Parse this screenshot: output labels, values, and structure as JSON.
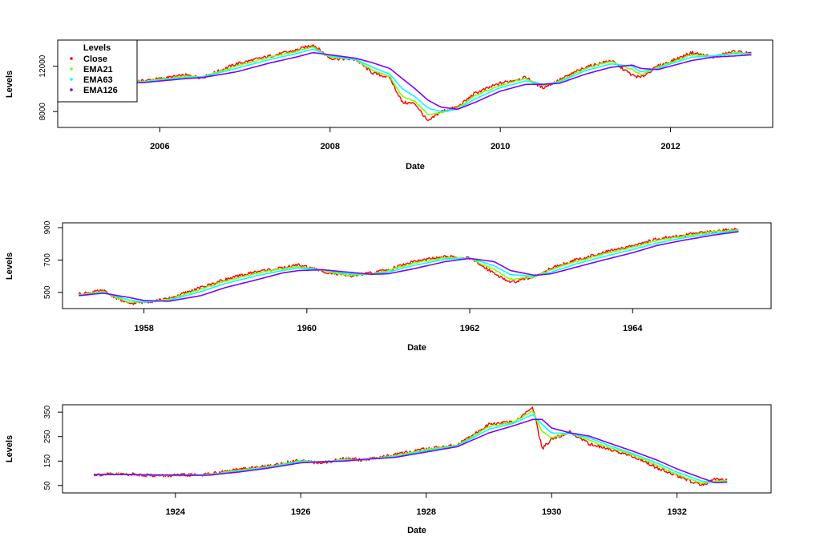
{
  "colors": {
    "Close": "#ff0000",
    "EMA21": "#80ff00",
    "EMA63": "#00ffff",
    "EMA126": "#8000ff"
  },
  "legend": {
    "title": "Levels",
    "entries": [
      "Close",
      "EMA21",
      "EMA63",
      "EMA126"
    ],
    "placement": "top-left of first panel"
  },
  "chart_data": [
    {
      "type": "line",
      "xlabel": "Date",
      "ylabel": "Levels",
      "xlim": [
        2004.8,
        2013.2
      ],
      "ylim": [
        6600,
        14300
      ],
      "xticks": [
        2006,
        2008,
        2010,
        2012
      ],
      "yticks": [
        8000,
        12000
      ],
      "x": [
        2004.9,
        2005.3,
        2005.8,
        2006.3,
        2006.5,
        2006.9,
        2007.3,
        2007.6,
        2007.8,
        2008.0,
        2008.3,
        2008.5,
        2008.7,
        2008.85,
        2009.0,
        2009.15,
        2009.3,
        2009.5,
        2009.7,
        2010.0,
        2010.3,
        2010.5,
        2010.7,
        2011.0,
        2011.3,
        2011.55,
        2011.65,
        2011.85,
        2012.0,
        2012.25,
        2012.5,
        2012.75,
        2012.95
      ],
      "series": [
        {
          "name": "Close",
          "values": [
            10650,
            10600,
            10700,
            11200,
            11000,
            12200,
            12900,
            13400,
            13900,
            12700,
            12600,
            11400,
            11000,
            8800,
            8700,
            7100,
            8000,
            8400,
            9600,
            10500,
            11000,
            10100,
            10800,
            11900,
            12500,
            11200,
            11000,
            12000,
            12400,
            13200,
            12800,
            13300,
            13100
          ]
        },
        {
          "name": "EMA21",
          "values": [
            10650,
            10600,
            10650,
            11100,
            11050,
            12000,
            12800,
            13300,
            13700,
            12800,
            12600,
            11600,
            11100,
            9300,
            8900,
            7700,
            7900,
            8300,
            9400,
            10300,
            10900,
            10300,
            10700,
            11800,
            12400,
            11700,
            11200,
            11900,
            12300,
            13000,
            12900,
            13200,
            13100
          ]
        },
        {
          "name": "EMA63",
          "values": [
            10650,
            10600,
            10600,
            11000,
            11050,
            11800,
            12600,
            13100,
            13500,
            12900,
            12600,
            11900,
            11300,
            10000,
            9300,
            8300,
            8000,
            8200,
            9100,
            10100,
            10700,
            10400,
            10600,
            11600,
            12200,
            12000,
            11500,
            11800,
            12200,
            12800,
            12900,
            13100,
            13100
          ]
        },
        {
          "name": "EMA126",
          "values": [
            10600,
            10600,
            10550,
            10900,
            11000,
            11500,
            12300,
            12800,
            13200,
            13000,
            12700,
            12300,
            11800,
            10900,
            10000,
            9000,
            8400,
            8200,
            8800,
            9800,
            10400,
            10400,
            10500,
            11300,
            11900,
            12100,
            11800,
            11700,
            12000,
            12500,
            12800,
            12900,
            13000
          ]
        }
      ]
    },
    {
      "type": "line",
      "xlabel": "Date",
      "ylabel": "Levels",
      "xlim": [
        1957.0,
        1965.7
      ],
      "ylim": [
        400,
        930
      ],
      "xticks": [
        1958,
        1960,
        1962,
        1964
      ],
      "yticks": [
        500,
        700,
        900
      ],
      "x": [
        1957.2,
        1957.5,
        1957.8,
        1958.0,
        1958.3,
        1958.7,
        1959.0,
        1959.4,
        1959.7,
        1959.9,
        1960.2,
        1960.5,
        1960.8,
        1961.0,
        1961.3,
        1961.7,
        1962.0,
        1962.3,
        1962.5,
        1962.8,
        1963.0,
        1963.3,
        1963.6,
        1964.0,
        1964.3,
        1964.6,
        1965.0,
        1965.3
      ],
      "series": [
        {
          "name": "Close",
          "values": [
            490,
            510,
            430,
            440,
            460,
            530,
            580,
            630,
            650,
            670,
            630,
            600,
            620,
            640,
            690,
            720,
            710,
            620,
            560,
            600,
            650,
            700,
            740,
            790,
            830,
            850,
            880,
            890
          ]
        },
        {
          "name": "EMA21",
          "values": [
            485,
            505,
            440,
            440,
            455,
            520,
            570,
            620,
            645,
            660,
            635,
            605,
            615,
            635,
            680,
            715,
            710,
            640,
            580,
            595,
            640,
            690,
            730,
            780,
            820,
            845,
            875,
            885
          ]
        },
        {
          "name": "EMA63",
          "values": [
            480,
            500,
            455,
            440,
            450,
            505,
            555,
            605,
            635,
            650,
            640,
            615,
            612,
            625,
            665,
            705,
            712,
            665,
            610,
            600,
            625,
            675,
            715,
            765,
            805,
            835,
            865,
            880
          ]
        },
        {
          "name": "EMA126",
          "values": [
            480,
            495,
            470,
            450,
            445,
            480,
            530,
            580,
            620,
            635,
            640,
            625,
            612,
            615,
            645,
            690,
            710,
            690,
            635,
            605,
            615,
            655,
            695,
            745,
            790,
            820,
            855,
            875
          ]
        }
      ]
    },
    {
      "type": "line",
      "xlabel": "Date",
      "ylabel": "Levels",
      "xlim": [
        1922.2,
        1933.5
      ],
      "ylim": [
        20,
        380
      ],
      "xticks": [
        1924,
        1926,
        1928,
        1930,
        1932
      ],
      "yticks": [
        50,
        150,
        250,
        350
      ],
      "x": [
        1922.7,
        1923.2,
        1923.8,
        1924.5,
        1925.0,
        1925.5,
        1926.0,
        1926.3,
        1926.7,
        1927.0,
        1927.5,
        1928.0,
        1928.5,
        1929.0,
        1929.4,
        1929.7,
        1929.85,
        1930.0,
        1930.3,
        1930.6,
        1930.9,
        1931.3,
        1931.7,
        1932.0,
        1932.4,
        1932.6,
        1932.8
      ],
      "series": [
        {
          "name": "Close",
          "values": [
            95,
            97,
            90,
            95,
            115,
            130,
            155,
            140,
            160,
            155,
            175,
            200,
            215,
            300,
            310,
            370,
            200,
            240,
            270,
            220,
            200,
            170,
            120,
            90,
            50,
            75,
            70
          ]
        },
        {
          "name": "EMA21",
          "values": [
            95,
            96,
            92,
            94,
            112,
            128,
            152,
            145,
            157,
            156,
            172,
            197,
            214,
            292,
            310,
            355,
            270,
            245,
            265,
            235,
            205,
            175,
            130,
            95,
            58,
            68,
            70
          ]
        },
        {
          "name": "EMA63",
          "values": [
            95,
            95,
            93,
            93,
            108,
            125,
            148,
            147,
            153,
            157,
            168,
            192,
            212,
            280,
            305,
            340,
            300,
            265,
            262,
            245,
            215,
            180,
            140,
            105,
            68,
            62,
            66
          ]
        },
        {
          "name": "EMA126",
          "values": [
            95,
            95,
            93,
            92,
            105,
            122,
            143,
            147,
            150,
            157,
            165,
            187,
            209,
            265,
            295,
            320,
            320,
            285,
            265,
            252,
            225,
            190,
            152,
            118,
            80,
            62,
            64
          ]
        }
      ]
    }
  ]
}
